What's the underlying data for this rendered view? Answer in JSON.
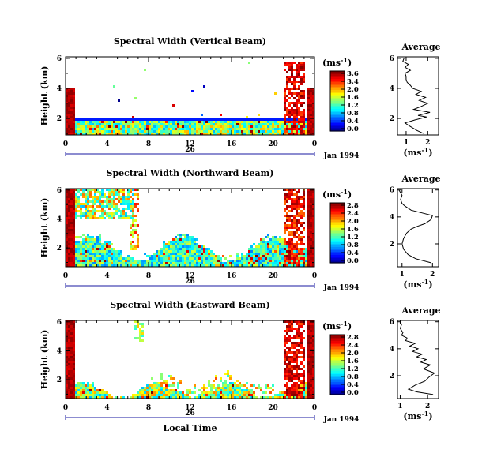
{
  "chart_data": [
    {
      "type": "heatmap",
      "title": "Spectral Width (Vertical Beam)",
      "ylabel": "Height (km)",
      "x_ticks": [
        "0",
        "4",
        "8",
        "12",
        "16",
        "20",
        "0"
      ],
      "y_ticks": [
        "2",
        "4",
        "6"
      ],
      "xlim": [
        0,
        24
      ],
      "ylim": [
        0.9,
        6.1
      ],
      "date_label": "26",
      "month_label": "Jan 1994",
      "colorbar": {
        "unit_label": "(ms",
        "unit_exp": "-1",
        "unit_close": ")",
        "ticks": [
          "3.6",
          "3.4",
          "2.0",
          "1.6",
          "1.2",
          "0.8",
          "0.4",
          "0.0"
        ],
        "min": 0,
        "max": 3.6
      },
      "profile": {
        "title": "Average",
        "x_ticks": [
          "1",
          "2"
        ],
        "xlabel": "(ms",
        "xlabel_exp": "-1",
        "xlabel_close": ")",
        "y_ticks": [
          "2",
          "4",
          "6"
        ],
        "xlim": [
          0.6,
          2.5
        ],
        "ylim": [
          0.9,
          6.1
        ],
        "x": [
          1.8,
          1.5,
          1.15,
          0.95,
          1.4,
          1.95,
          1.55,
          2.1,
          1.35,
          1.7,
          2.0,
          1.6,
          1.9,
          1.45,
          1.7,
          1.3,
          1.2,
          1.05,
          1.0,
          1.0,
          0.95,
          1.2,
          0.95,
          1.1,
          0.85,
          0.9
        ],
        "y": [
          1.0,
          1.2,
          1.5,
          1.7,
          1.9,
          2.1,
          2.2,
          2.4,
          2.6,
          2.8,
          3.0,
          3.2,
          3.4,
          3.6,
          3.8,
          4.0,
          4.2,
          4.4,
          4.6,
          4.8,
          5.0,
          5.2,
          5.4,
          5.6,
          5.8,
          6.0
        ]
      }
    },
    {
      "type": "heatmap",
      "title": "Spectral Width (Northward Beam)",
      "ylabel": "Height (km)",
      "x_ticks": [
        "0",
        "4",
        "8",
        "12",
        "16",
        "20",
        "0"
      ],
      "y_ticks": [
        "2",
        "4",
        "6"
      ],
      "xlim": [
        0,
        24
      ],
      "ylim": [
        0.7,
        6.1
      ],
      "date_label": "26",
      "month_label": "Jan 1994",
      "colorbar": {
        "unit_label": "(ms",
        "unit_exp": "-1",
        "unit_close": ")",
        "ticks": [
          "2.8",
          "2.4",
          "2.0",
          "1.6",
          "1.2",
          "0.8",
          "0.4",
          "0.0"
        ],
        "min": 0,
        "max": 2.8
      },
      "profile": {
        "title": "Average",
        "x_ticks": [
          "1",
          "2"
        ],
        "xlabel": "(ms",
        "xlabel_exp": "-1",
        "xlabel_close": ")",
        "y_ticks": [
          "2",
          "4",
          "6"
        ],
        "xlim": [
          0.85,
          2.2
        ],
        "ylim": [
          0.3,
          6.1
        ],
        "x": [
          1.95,
          1.45,
          1.2,
          1.05,
          1.0,
          1.05,
          1.15,
          1.3,
          1.5,
          1.75,
          1.95,
          2.0,
          1.65,
          1.3,
          1.1,
          1.0,
          0.95,
          1.0,
          0.95,
          0.9
        ],
        "y": [
          0.6,
          0.9,
          1.2,
          1.6,
          2.0,
          2.4,
          2.8,
          3.1,
          3.3,
          3.5,
          3.8,
          4.1,
          4.3,
          4.5,
          4.8,
          5.0,
          5.3,
          5.6,
          5.8,
          6.0
        ]
      }
    },
    {
      "type": "heatmap",
      "title": "Spectral Width (Eastward Beam)",
      "ylabel": "Height (km)",
      "x_ticks": [
        "0",
        "4",
        "8",
        "12",
        "16",
        "20",
        "0"
      ],
      "y_ticks": [
        "2",
        "4",
        "6"
      ],
      "xlim": [
        0,
        24
      ],
      "ylim": [
        0.7,
        6.1
      ],
      "date_label": "26",
      "month_label": "Jan 1994",
      "xlabel": "Local Time",
      "colorbar": {
        "unit_label": "(ms",
        "unit_exp": "-1",
        "unit_close": ")",
        "ticks": [
          "2.8",
          "2.4",
          "2.0",
          "1.6",
          "1.2",
          "0.8",
          "0.4",
          "0.0"
        ],
        "min": 0,
        "max": 2.8
      },
      "profile": {
        "title": "Average",
        "x_ticks": [
          "1",
          "2"
        ],
        "xlabel": "(ms",
        "xlabel_exp": "-1",
        "xlabel_close": ")",
        "y_ticks": [
          "2",
          "4",
          "6"
        ],
        "xlim": [
          0.9,
          2.4
        ],
        "ylim": [
          0.3,
          6.1
        ],
        "x": [
          2.2,
          1.6,
          1.3,
          1.55,
          1.9,
          2.05,
          2.25,
          1.85,
          2.1,
          1.75,
          1.95,
          1.6,
          1.8,
          1.45,
          1.65,
          1.35,
          1.55,
          1.2,
          1.25,
          1.05,
          1.1,
          1.0,
          1.05,
          1.0
        ],
        "y": [
          0.6,
          0.8,
          1.0,
          1.3,
          1.6,
          1.9,
          2.2,
          2.5,
          2.8,
          3.0,
          3.2,
          3.4,
          3.6,
          3.8,
          4.0,
          4.2,
          4.4,
          4.6,
          4.8,
          5.0,
          5.2,
          5.5,
          5.8,
          6.0
        ]
      }
    }
  ]
}
